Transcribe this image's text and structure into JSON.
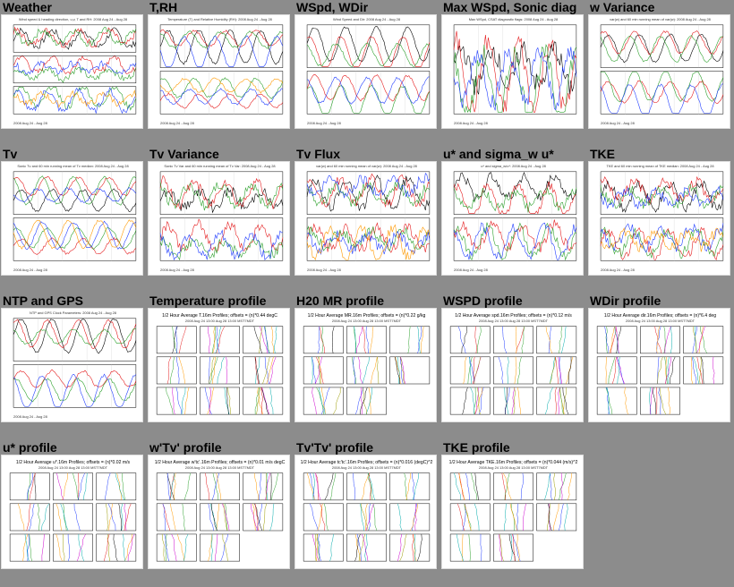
{
  "cells": [
    {
      "label": "Weather",
      "kind": "timeseries",
      "caption": "Wind speed & heading direction, u,v, T and RH",
      "date": "2008 Aug 24 - Aug 28",
      "panels": 3
    },
    {
      "label": "T,RH",
      "kind": "timeseries",
      "caption": "Temperature (T) and Relative Humidity (RH)",
      "date": "2008 Aug 24 - Aug 28",
      "panels": 2
    },
    {
      "label": "WSpd, WDir",
      "kind": "timeseries",
      "caption": "Wind Speed and Dir",
      "date": "2008 Aug 24 - Aug 28",
      "panels": 2
    },
    {
      "label": "Max WSpd, Sonic diag",
      "kind": "timeseries",
      "caption": "Max WSpd, CSAT diagnostic flags",
      "date": "2008 Aug 24 - Aug 28",
      "panels": 1
    },
    {
      "label": "w Variance",
      "kind": "timeseries",
      "caption": "var(w) and 60 min running mean of var(w)",
      "date": "2008 Aug 24 - Aug 28",
      "panels": 2
    },
    {
      "label": "Tv",
      "kind": "timeseries",
      "caption": "Sonic Tv and 60 min running mean of Tv median",
      "date": "2008 Aug 24 - Aug 28",
      "panels": 2
    },
    {
      "label": "Tv Variance",
      "kind": "timeseries",
      "caption": "Sonic Tv Var and 60 min running mean of Tv Var",
      "date": "2008 Aug 24 - Aug 28",
      "panels": 2
    },
    {
      "label": "Tv Flux",
      "kind": "timeseries",
      "caption": "var(w) and 60 min running mean of var(w)",
      "date": "2008 Aug 24 - Aug 28",
      "panels": 2
    },
    {
      "label": "u* and sigma_w u*",
      "kind": "timeseries",
      "caption": "u* and sigma_w/u*",
      "date": "2008 Aug 24 - Aug 28",
      "panels": 2
    },
    {
      "label": "TKE",
      "kind": "timeseries",
      "caption": "TKE and 60 min running mean of TKE median",
      "date": "2008 Aug 24 - Aug 28",
      "panels": 2
    },
    {
      "label": "NTP and GPS",
      "kind": "timeseries",
      "caption": "NTP and GPS Clock Parameters",
      "date": "2008 Aug 24 - Aug 28",
      "panels": 2
    },
    {
      "label": "Temperature profile",
      "kind": "profile",
      "caption": "1/2 Hour Average T.16m Profiles; offsets = (n)*0.44 degC"
    },
    {
      "label": "H20 MR profile",
      "kind": "profile",
      "caption": "1/2 Hour Average MR.16m Profiles; offsets = (n)*0.22 g/kg"
    },
    {
      "label": "WSPD profile",
      "kind": "profile",
      "caption": "1/2 Hour Average spd.16m Profiles; offsets = (n)*0.12 m/s"
    },
    {
      "label": "WDir profile",
      "kind": "profile",
      "caption": "1/2 Hour Average dir.16m Profiles; offsets = (n)*6.4 deg"
    },
    {
      "label": "u* profile",
      "kind": "profile",
      "caption": "1/2 Hour Average u*.16m Profiles; offsets = (n)*0.02 m/s"
    },
    {
      "label": "w'Tv' profile",
      "kind": "profile",
      "caption": "1/2 Hour Average w'tc'.16m Profiles; offsets = (n)*0.01 m/s degC"
    },
    {
      "label": "Tv'Tv' profile",
      "kind": "profile",
      "caption": "1/2 Hour Average tc'tc'.16m Profiles; offsets = (n)*0.016 (degC)^2"
    },
    {
      "label": "TKE profile",
      "kind": "profile",
      "caption": "1/2 Hour Average TKE.16m Profiles; offsets = (n)*0.044 (m/s)^2"
    }
  ],
  "profile_subtitle": "2008 Aug 24 13:00 Aug 28 13:00 MST7MDT",
  "colors": [
    "#000000",
    "#e41a1c",
    "#2ca02c",
    "#1f3cff",
    "#ff9900",
    "#00aaaa",
    "#cc00cc",
    "#999900"
  ]
}
